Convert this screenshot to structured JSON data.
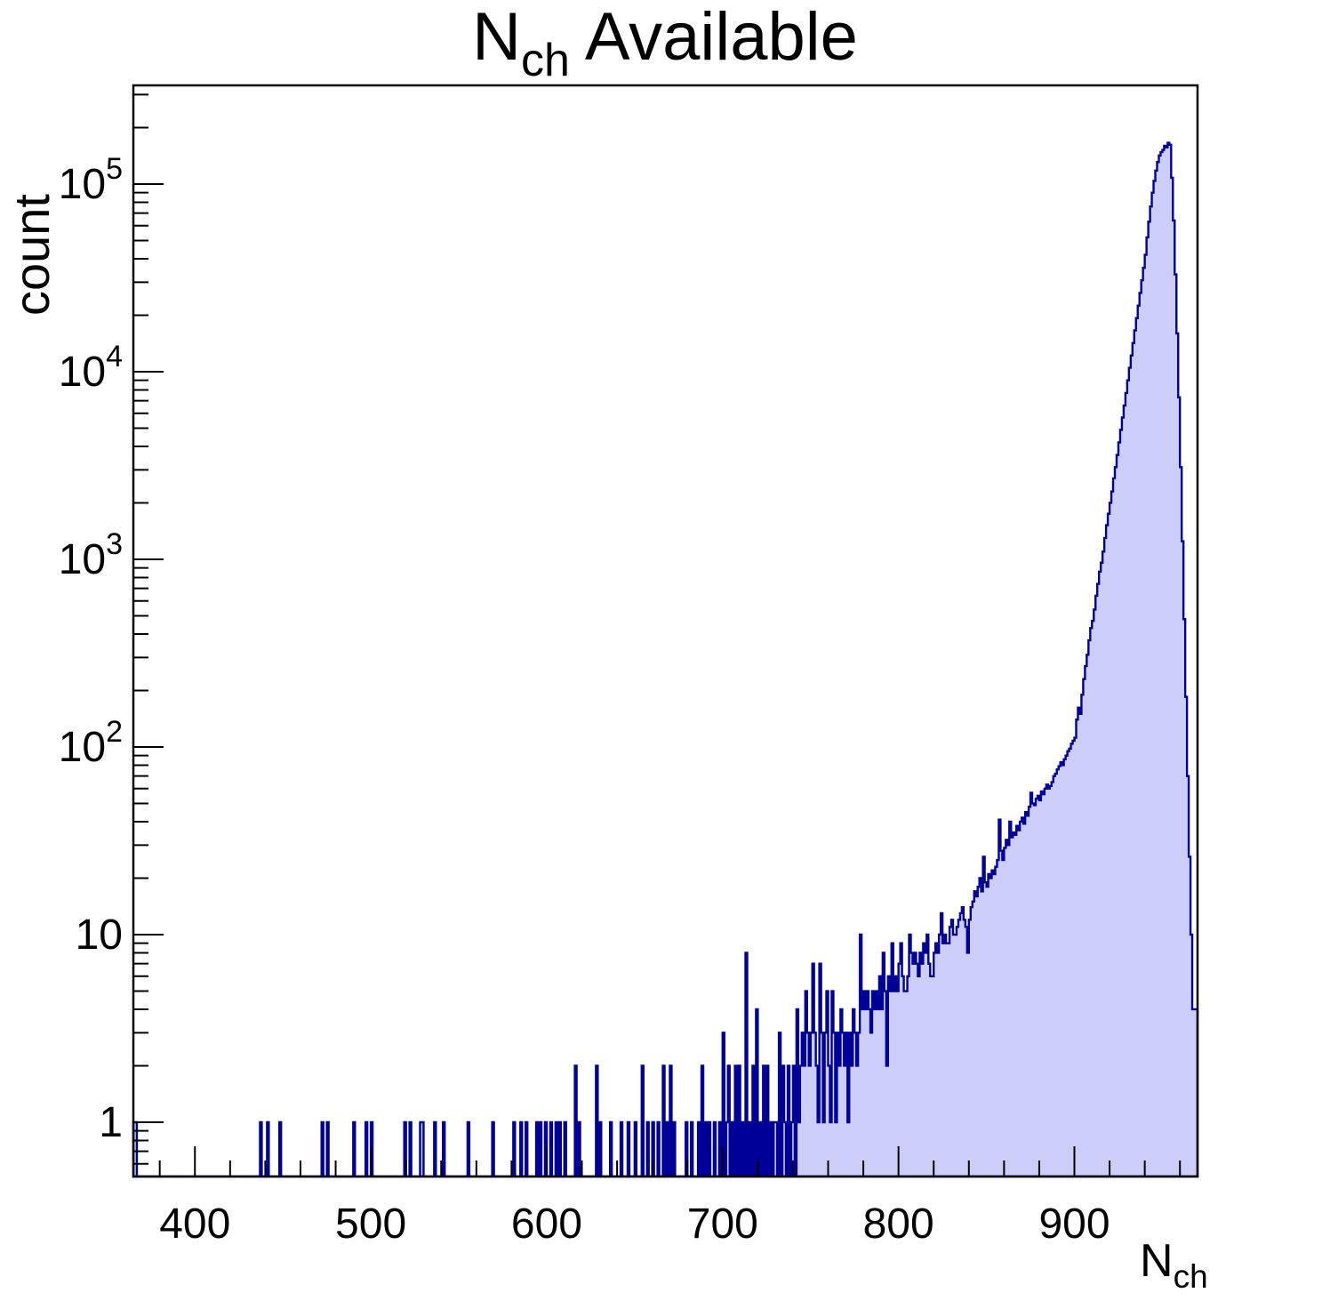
{
  "title": {
    "base": "N",
    "sub": "ch",
    "rest": " Available"
  },
  "y_axis_title": "count",
  "x_axis_title": {
    "base": "N",
    "sub": "ch"
  },
  "colors": {
    "fill": "#cccdf9",
    "line": "#000099",
    "frame": "#000000",
    "background": "#ffffff",
    "text": "#000000"
  },
  "chart_data": {
    "type": "bar",
    "title": "Nch Available",
    "xlabel": "Nch",
    "ylabel": "count",
    "x_range": [
      365,
      970
    ],
    "bin_width": 1,
    "y_scale": "log",
    "y_range": [
      0.5,
      336000
    ],
    "grid": false,
    "legend": false,
    "x_major_ticks": [
      400,
      500,
      600,
      700,
      800,
      900
    ],
    "x_minor_tick_step": 20,
    "y_major_ticks": [
      {
        "value": 1,
        "label": "1"
      },
      {
        "value": 10,
        "label": "10"
      },
      {
        "value": 100,
        "label": "10",
        "exp": "2"
      },
      {
        "value": 1000,
        "label": "10",
        "exp": "3"
      },
      {
        "value": 10000,
        "label": "10",
        "exp": "4"
      },
      {
        "value": 100000,
        "label": "10",
        "exp": "5"
      }
    ],
    "peak_bin": 953,
    "peak_count": 166000,
    "sparse_bins": [
      [
        365,
        1
      ],
      [
        366,
        1
      ],
      [
        437,
        1
      ],
      [
        441,
        1
      ],
      [
        448,
        1
      ],
      [
        472,
        1
      ],
      [
        475,
        1
      ],
      [
        490,
        1
      ],
      [
        497,
        1
      ],
      [
        500,
        1
      ],
      [
        519,
        1
      ],
      [
        522,
        1
      ],
      [
        528,
        1
      ],
      [
        529,
        1
      ],
      [
        536,
        1
      ],
      [
        541,
        1
      ],
      [
        555,
        1
      ],
      [
        569,
        1
      ],
      [
        581,
        1
      ],
      [
        585,
        1
      ],
      [
        588,
        1
      ],
      [
        594,
        1
      ],
      [
        596,
        1
      ],
      [
        599,
        1
      ],
      [
        602,
        1
      ],
      [
        605,
        1
      ],
      [
        607,
        1
      ],
      [
        610,
        1
      ],
      [
        616,
        2
      ],
      [
        618,
        1
      ],
      [
        628,
        2
      ],
      [
        630,
        1
      ],
      [
        636,
        1
      ],
      [
        642,
        1
      ],
      [
        646,
        1
      ],
      [
        650,
        1
      ],
      [
        654,
        2
      ],
      [
        657,
        1
      ],
      [
        660,
        1
      ],
      [
        663,
        1
      ],
      [
        666,
        2
      ],
      [
        668,
        1
      ],
      [
        670,
        2
      ],
      [
        672,
        1
      ],
      [
        679,
        1
      ],
      [
        682,
        1
      ],
      [
        686,
        1
      ],
      [
        688,
        2
      ],
      [
        690,
        1
      ],
      [
        692,
        1
      ],
      [
        695,
        1
      ],
      [
        698,
        1
      ],
      [
        700,
        3
      ],
      [
        702,
        1
      ],
      [
        703,
        2
      ],
      [
        705,
        1
      ],
      [
        707,
        2
      ],
      [
        709,
        2
      ],
      [
        711,
        1
      ],
      [
        713,
        8
      ],
      [
        715,
        1
      ],
      [
        717,
        2
      ],
      [
        719,
        4
      ],
      [
        721,
        1
      ],
      [
        723,
        2
      ],
      [
        725,
        2
      ],
      [
        727,
        1
      ],
      [
        729,
        1
      ],
      [
        730,
        1
      ],
      [
        732,
        3
      ],
      [
        734,
        2
      ],
      [
        735,
        1
      ],
      [
        737,
        2
      ],
      [
        739,
        1
      ],
      [
        740,
        2
      ],
      [
        742,
        4
      ],
      [
        743,
        1
      ],
      [
        744,
        2
      ]
    ],
    "dense_bins": {
      "start": 745,
      "counts": [
        3,
        2,
        5,
        3,
        2,
        3,
        7,
        3,
        2,
        1,
        7,
        3,
        1,
        3,
        5,
        2,
        1,
        5,
        3,
        1,
        3,
        2,
        4,
        3,
        2,
        3,
        1,
        3,
        2,
        4,
        3,
        2,
        3,
        10,
        4,
        5,
        4,
        5,
        4,
        3,
        5,
        4,
        5,
        4,
        6,
        4,
        8,
        5,
        2,
        6,
        5,
        9,
        5,
        6,
        5,
        7,
        9,
        6,
        5,
        5,
        6,
        10,
        8,
        7,
        8,
        7,
        6,
        8,
        7,
        9,
        8,
        10,
        7,
        6,
        6,
        8,
        9,
        8,
        10,
        13,
        9,
        10,
        9,
        9,
        11,
        12,
        10,
        10,
        11,
        12,
        13,
        14,
        12,
        11,
        8,
        12,
        14,
        15,
        17,
        16,
        18,
        20,
        17,
        26,
        19,
        18,
        21,
        20,
        22,
        21,
        23,
        25,
        41,
        28,
        25,
        29,
        32,
        30,
        40,
        33,
        35,
        34,
        38,
        36,
        40,
        42,
        39,
        45,
        43,
        48,
        57,
        50,
        49,
        53,
        55,
        52,
        58,
        56,
        60,
        63,
        60,
        62,
        65,
        70,
        72,
        76,
        79,
        83,
        80,
        86,
        90,
        95,
        98,
        104,
        108,
        112,
        140,
        162,
        150,
        190,
        230,
        270,
        310,
        370,
        430,
        470,
        540,
        640,
        740,
        860,
        960,
        1100,
        1300,
        1520,
        1750,
        2000,
        2300,
        2700,
        3100,
        3600,
        4200,
        4900,
        5700,
        6600,
        7700,
        9000,
        10500,
        12200,
        14200,
        16600,
        19300,
        22500,
        26300,
        30700,
        35800,
        42000,
        52000,
        63000,
        76000,
        90000,
        104000,
        118000,
        131000,
        142000,
        148000,
        152000,
        160000,
        157000,
        166000,
        162000,
        108000,
        64000,
        33000,
        16000,
        7300,
        3100,
        1250,
        480,
        185,
        70,
        26,
        10,
        4,
        4,
        4
      ]
    }
  }
}
